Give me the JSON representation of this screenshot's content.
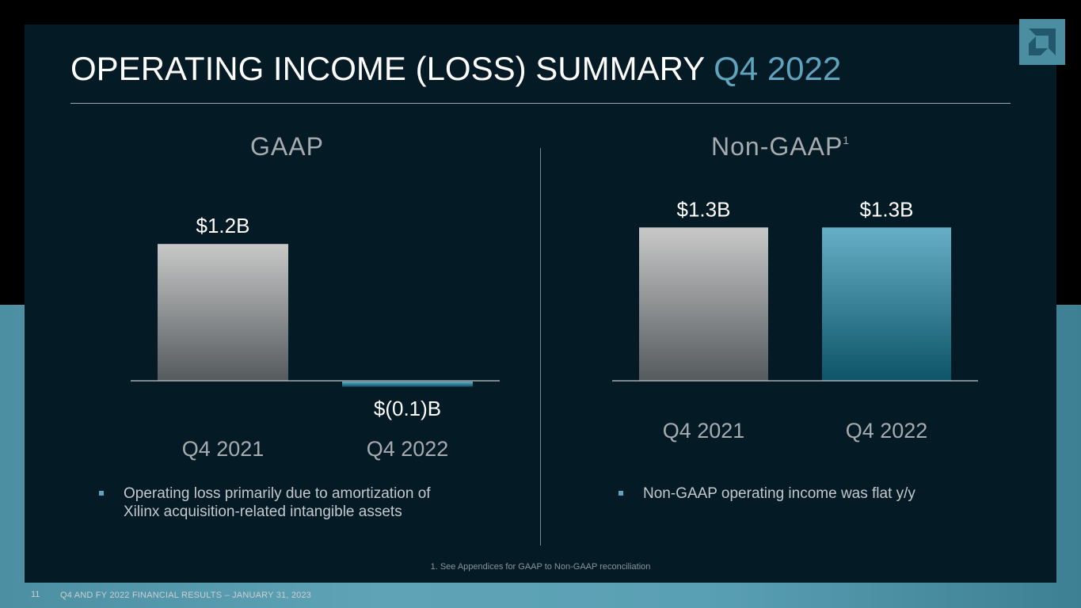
{
  "title": {
    "main": "OPERATING INCOME (LOSS) SUMMARY",
    "accent": "Q4 2022"
  },
  "logo": {
    "icon": "amd-logo-icon"
  },
  "gaap": {
    "heading": "GAAP",
    "bullet": [
      "Operating loss primarily due to amortization of",
      "Xilinx acquisition-related intangible assets"
    ]
  },
  "nongaap": {
    "heading": "Non-GAAP",
    "footnote_mark": "1",
    "bullet": "Non-GAAP operating income was flat y/y"
  },
  "chart_data": [
    {
      "type": "bar",
      "title": "GAAP",
      "categories": [
        "Q4 2021",
        "Q4 2022"
      ],
      "values": [
        1.2,
        -0.1
      ],
      "labels": [
        "$1.2B",
        "$(0.1)B"
      ],
      "unit": "$B",
      "colors": [
        "gray",
        "blue"
      ]
    },
    {
      "type": "bar",
      "title": "Non-GAAP",
      "categories": [
        "Q4 2021",
        "Q4 2022"
      ],
      "values": [
        1.3,
        1.3
      ],
      "labels": [
        "$1.3B",
        "$1.3B"
      ],
      "unit": "$B",
      "colors": [
        "gray",
        "blue"
      ]
    }
  ],
  "colors": {
    "accent": "#5fa3bd",
    "panel": "#041a25",
    "gray_top": "#c8c8c8",
    "gray_bottom": "#555a5d",
    "blue_top": "#66afc6",
    "blue_bottom": "#0d5468"
  },
  "footnote": "1. See Appendices for GAAP to Non-GAAP reconciliation",
  "footer": {
    "page": "11",
    "text": "Q4 AND FY 2022 FINANCIAL RESULTS – JANUARY 31, 2023"
  }
}
